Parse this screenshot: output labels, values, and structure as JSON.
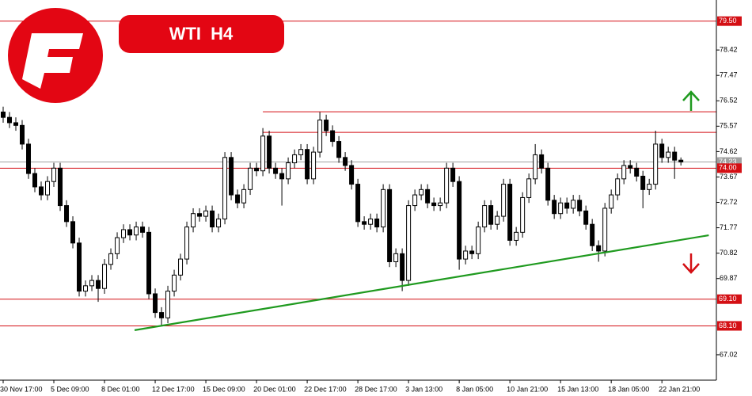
{
  "chart_data": {
    "type": "candlestick",
    "title": "WTI H4",
    "open": [
      76.1,
      75.9,
      75.7,
      75.6,
      74.9,
      73.8,
      73.3,
      73.0,
      73.5,
      74.0,
      72.6,
      72.0,
      71.2,
      69.4,
      69.6,
      69.8,
      69.5,
      70.4,
      70.8,
      71.4,
      71.7,
      71.5,
      71.8,
      71.6,
      69.3,
      68.6,
      68.4,
      69.4,
      70.0,
      70.6,
      71.8,
      72.3,
      72.2,
      72.4,
      71.8,
      72.1,
      74.4,
      73.0,
      72.7,
      73.2,
      74.0,
      73.9,
      75.2,
      74.0,
      73.8,
      73.6,
      74.2,
      74.5,
      74.7,
      73.6,
      74.6,
      75.8,
      75.4,
      75.0,
      74.4,
      74.1,
      73.4,
      72.0,
      71.9,
      72.1,
      71.8,
      73.2,
      70.5,
      70.8,
      69.8,
      72.6,
      73.0,
      73.2,
      72.7,
      72.6,
      72.7,
      74.0,
      73.5,
      70.6,
      70.9,
      70.8,
      71.8,
      72.6,
      71.9,
      72.2,
      73.4,
      71.3,
      71.6,
      72.9,
      73.6,
      74.5,
      74.0,
      72.8,
      72.3,
      72.7,
      72.5,
      72.8,
      72.4,
      71.9,
      71.1,
      70.9,
      72.5,
      73.0,
      73.6,
      74.1,
      74.0,
      73.7,
      73.2,
      73.4,
      74.9,
      74.4,
      74.6,
      74.3
    ],
    "high": [
      76.3,
      76.1,
      75.9,
      75.8,
      75.1,
      74.0,
      73.5,
      73.7,
      74.2,
      74.2,
      72.8,
      72.2,
      71.4,
      69.8,
      70.0,
      70.0,
      70.6,
      71.0,
      71.6,
      71.9,
      71.9,
      72.0,
      72.0,
      71.8,
      69.5,
      68.8,
      69.6,
      70.2,
      70.8,
      72.0,
      72.5,
      72.5,
      72.6,
      72.6,
      72.3,
      74.6,
      74.6,
      73.2,
      73.4,
      74.2,
      74.2,
      75.5,
      75.4,
      74.2,
      74.0,
      74.4,
      74.7,
      74.9,
      74.9,
      74.8,
      76.1,
      76.0,
      75.6,
      75.2,
      74.6,
      74.3,
      73.6,
      72.2,
      72.3,
      72.3,
      73.4,
      73.4,
      71.0,
      71.0,
      72.8,
      73.2,
      73.4,
      73.4,
      72.9,
      72.9,
      74.2,
      74.2,
      73.7,
      71.1,
      71.1,
      72.0,
      72.8,
      72.8,
      72.4,
      73.6,
      73.6,
      71.8,
      73.1,
      73.8,
      74.9,
      74.7,
      74.2,
      73.0,
      72.9,
      72.9,
      73.0,
      73.0,
      72.6,
      72.1,
      71.3,
      72.7,
      73.2,
      73.8,
      74.3,
      74.3,
      74.2,
      73.9,
      73.6,
      75.4,
      75.1,
      74.8,
      74.8,
      74.4
    ],
    "low": [
      75.7,
      75.5,
      75.4,
      74.7,
      73.6,
      73.1,
      72.8,
      72.8,
      73.3,
      72.4,
      71.8,
      71.0,
      69.2,
      69.2,
      69.4,
      69.0,
      69.3,
      70.2,
      70.6,
      71.2,
      71.3,
      71.3,
      71.4,
      69.1,
      68.4,
      68.1,
      68.2,
      69.2,
      69.8,
      70.4,
      71.6,
      72.0,
      72.0,
      71.6,
      71.6,
      71.9,
      72.8,
      72.5,
      72.5,
      73.0,
      73.7,
      73.7,
      73.8,
      73.6,
      72.6,
      73.4,
      74.0,
      74.3,
      73.4,
      73.4,
      74.4,
      75.2,
      74.8,
      74.2,
      73.9,
      73.2,
      71.8,
      71.7,
      71.7,
      71.6,
      71.6,
      70.3,
      70.3,
      69.4,
      69.6,
      72.4,
      72.8,
      72.5,
      72.4,
      72.4,
      72.5,
      73.3,
      70.2,
      70.4,
      70.6,
      70.6,
      71.6,
      71.7,
      71.7,
      72.0,
      71.1,
      71.1,
      71.4,
      72.7,
      73.4,
      73.8,
      72.6,
      72.1,
      72.1,
      72.3,
      72.3,
      72.2,
      71.7,
      70.9,
      70.5,
      70.7,
      72.3,
      72.8,
      73.4,
      73.8,
      73.5,
      72.5,
      73.0,
      73.2,
      74.2,
      74.2,
      73.6,
      74.1
    ],
    "close": [
      75.9,
      75.7,
      75.6,
      74.9,
      73.8,
      73.3,
      73.0,
      73.5,
      74.0,
      72.6,
      72.0,
      71.2,
      69.4,
      69.6,
      69.8,
      69.5,
      70.4,
      70.8,
      71.4,
      71.7,
      71.5,
      71.8,
      71.6,
      69.3,
      68.6,
      68.4,
      69.4,
      70.0,
      70.6,
      71.8,
      72.3,
      72.2,
      72.4,
      71.8,
      72.1,
      74.4,
      73.0,
      72.7,
      73.2,
      74.0,
      73.9,
      75.2,
      74.0,
      73.8,
      73.6,
      74.2,
      74.5,
      74.7,
      73.6,
      74.6,
      75.8,
      75.4,
      75.0,
      74.4,
      74.1,
      73.4,
      72.0,
      71.9,
      72.1,
      71.8,
      73.2,
      70.5,
      70.8,
      69.8,
      72.6,
      73.0,
      73.2,
      72.7,
      72.6,
      72.7,
      74.0,
      73.5,
      70.6,
      70.9,
      70.8,
      71.8,
      72.6,
      71.9,
      72.2,
      73.4,
      71.3,
      71.6,
      72.9,
      73.6,
      74.5,
      74.0,
      72.8,
      72.3,
      72.7,
      72.5,
      72.8,
      72.4,
      71.9,
      71.1,
      70.9,
      72.5,
      73.0,
      73.6,
      74.1,
      74.0,
      73.7,
      73.2,
      73.4,
      74.9,
      74.4,
      74.6,
      74.3,
      74.23
    ],
    "xlim": [
      -0.5,
      112.6
    ],
    "xticks": [
      {
        "value": 0,
        "label": "30 Nov 17:00"
      },
      {
        "value": 8,
        "label": "5 Dec 09:00"
      },
      {
        "value": 16,
        "label": "8 Dec 01:00"
      },
      {
        "value": 24,
        "label": "12 Dec 17:00"
      },
      {
        "value": 32,
        "label": "15 Dec 09:00"
      },
      {
        "value": 40,
        "label": "20 Dec 01:00"
      },
      {
        "value": 48,
        "label": "22 Dec 17:00"
      },
      {
        "value": 56,
        "label": "28 Dec 17:00"
      },
      {
        "value": 64,
        "label": "3 Jan 13:00"
      },
      {
        "value": 72,
        "label": "8 Jan 05:00"
      },
      {
        "value": 80,
        "label": "10 Jan 21:00"
      },
      {
        "value": 88,
        "label": "15 Jan 13:00"
      },
      {
        "value": 96,
        "label": "18 Jan 05:00"
      },
      {
        "value": 104,
        "label": "22 Jan 21:00"
      }
    ],
    "ylim": [
      66.07,
      80.29
    ],
    "yticks": [
      67.02,
      69.87,
      70.82,
      71.77,
      72.72,
      73.67,
      74.62,
      75.57,
      76.52,
      77.47,
      78.42
    ],
    "levels": [
      {
        "value": 79.5,
        "label": "79.50",
        "color": "#d40f14"
      },
      {
        "value": 74,
        "label": "74.00",
        "color": "#d40f14"
      },
      {
        "value": 69.1,
        "label": "69.10",
        "color": "#d40f14"
      },
      {
        "value": 68.1,
        "label": "68.10",
        "color": "#d40f14"
      }
    ],
    "zones": [
      {
        "value": 76.11,
        "from": 41,
        "color": "#d40f14"
      },
      {
        "value": 75.34,
        "from": 41,
        "color": "#d40f14"
      }
    ],
    "current_price": {
      "value": 74.23,
      "color": "#a0a0a0"
    },
    "trendline": {
      "x": [
        20.75,
        111.4
      ],
      "y": [
        67.94,
        71.49
      ],
      "color": "#1f9a1f"
    },
    "bull_color": "#ffffff",
    "bear_color": "#000000"
  }
}
